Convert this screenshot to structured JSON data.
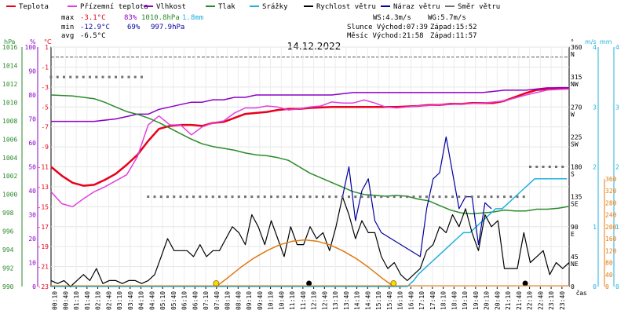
{
  "date_title": "14.12.2022",
  "legend": [
    {
      "label": "Teplota",
      "color": "#e8001c"
    },
    {
      "label": "Přízemní teplota",
      "color": "#e040e0"
    },
    {
      "label": "Vlhkost",
      "color": "#8a00c8"
    },
    {
      "label": "Tlak",
      "color": "#2a8a2a"
    },
    {
      "label": "Srážky",
      "color": "#20b0e0"
    },
    {
      "label": "Rychlost větru",
      "color": "#000000"
    },
    {
      "label": "Náraz větru",
      "color": "#0000a0"
    },
    {
      "label": "Směr větru",
      "color": "#707070"
    }
  ],
  "stats": {
    "max_label": "max",
    "max_temp": "-3.1°C",
    "max_hum": "83%",
    "max_press": "1010.8hPa",
    "max_rain": "1.8mm",
    "min_label": "min",
    "min_temp": "-12.9°C",
    "min_hum": "69%",
    "min_press": "997.9hPa",
    "avg_label": "avg",
    "avg_temp": "-6.5°C",
    "ws": "WS:4.3m/s",
    "wg": "WG:5.7m/s",
    "slunce": "Slunce Východ:07:39",
    "slunce_zapad": "Západ:15:52",
    "mesic": "Měsíc  Východ:21:58",
    "mesic_zapad": "Západ:11:57"
  },
  "axes": {
    "hpa_unit": "hPa",
    "pct_unit": "%",
    "c_unit": "°C",
    "deg_unit": "°",
    "ms_unit": "m/s",
    "mm_unit": "mm",
    "time_label": "čas",
    "hpa_ticks": [
      "1016",
      "1014",
      "1012",
      "1010",
      "1008",
      "1006",
      "1004",
      "1002",
      "1000",
      "998",
      "996",
      "994",
      "992",
      "990"
    ],
    "pct_ticks": [
      "100",
      "90",
      "80",
      "70",
      "60",
      "50",
      "40",
      "30",
      "20",
      "10",
      "0"
    ],
    "c_ticks": [
      "1",
      "-1",
      "-3",
      "-5",
      "-7",
      "-9",
      "-11",
      "-13",
      "-15",
      "-17",
      "-19",
      "-21",
      "-23"
    ],
    "dir_ticks": [
      {
        "v": "360",
        "l": "N"
      },
      {
        "v": "315",
        "l": "NW"
      },
      {
        "v": "270",
        "l": "W"
      },
      {
        "v": "225",
        "l": "SW"
      },
      {
        "v": "180",
        "l": "S"
      },
      {
        "v": "135",
        "l": "SE"
      },
      {
        "v": "90",
        "l": "E"
      },
      {
        "v": "45",
        "l": "NE"
      },
      {
        "v": "0",
        "l": ""
      }
    ],
    "ms_ticks": [
      "4",
      "3",
      "2",
      "1",
      "0"
    ],
    "mm_ticks": [
      "4",
      "3",
      "2",
      "1",
      "0"
    ],
    "sun_ticks": [
      "360",
      "320",
      "280",
      "240",
      "200",
      "160",
      "120",
      "80",
      "40",
      "0"
    ],
    "time_ticks": [
      "00:10",
      "00:40",
      "01:10",
      "01:40",
      "02:10",
      "02:40",
      "03:10",
      "03:40",
      "04:10",
      "04:40",
      "05:10",
      "05:40",
      "06:10",
      "06:40",
      "07:10",
      "07:40",
      "08:10",
      "08:40",
      "09:10",
      "09:40",
      "10:10",
      "10:40",
      "11:10",
      "11:40",
      "12:10",
      "12:40",
      "13:10",
      "13:40",
      "14:10",
      "14:40",
      "15:10",
      "15:40",
      "16:10",
      "16:40",
      "17:10",
      "17:40",
      "18:10",
      "18:40",
      "19:10",
      "19:40",
      "20:10",
      "20:40",
      "21:10",
      "21:40",
      "22:10",
      "22:40",
      "23:10",
      "23:40"
    ]
  },
  "chart_data": {
    "type": "line",
    "x_unit": "hours",
    "series": [
      {
        "name": "Teplota",
        "color": "#e8001c",
        "unit": "°C",
        "x": [
          0,
          0.5,
          1,
          1.5,
          2,
          2.5,
          3,
          3.5,
          4,
          4.5,
          5,
          5.5,
          6,
          6.5,
          7,
          7.5,
          8,
          8.5,
          9,
          9.5,
          10,
          10.5,
          11,
          11.5,
          12,
          13,
          14,
          15,
          16,
          17,
          17.5,
          18,
          18.5,
          19,
          19.5,
          20,
          20.5,
          21,
          21.5,
          22,
          22.5,
          23,
          23.5,
          24
        ],
        "y": [
          -11,
          -11.9,
          -12.6,
          -12.9,
          -12.8,
          -12.3,
          -11.7,
          -10.8,
          -9.8,
          -8.4,
          -7.2,
          -6.9,
          -6.8,
          -6.8,
          -6.9,
          -6.6,
          -6.5,
          -6.1,
          -5.7,
          -5.6,
          -5.5,
          -5.3,
          -5.2,
          -5.2,
          -5.1,
          -5.0,
          -5.0,
          -5.0,
          -5.0,
          -4.9,
          -4.8,
          -4.8,
          -4.7,
          -4.7,
          -4.6,
          -4.6,
          -4.6,
          -4.4,
          -4.0,
          -3.6,
          -3.3,
          -3.2,
          -3.1,
          -3.1
        ]
      },
      {
        "name": "Přízemní teplota",
        "color": "#e040e0",
        "unit": "°C",
        "x": [
          0,
          0.5,
          1,
          1.5,
          2,
          2.5,
          3,
          3.5,
          4,
          4.5,
          5,
          5.5,
          6,
          6.5,
          7,
          7.5,
          8,
          8.5,
          9,
          9.5,
          10,
          10.5,
          11,
          11.5,
          12,
          12.5,
          13,
          13.5,
          14,
          14.5,
          15,
          15.5,
          16,
          17,
          18,
          19,
          20,
          21,
          22,
          23,
          24
        ],
        "y": [
          -13.5,
          -14.7,
          -15,
          -14.2,
          -13.5,
          -13,
          -12.4,
          -11.8,
          -10,
          -6.8,
          -5.9,
          -6.8,
          -6.8,
          -7.8,
          -7.0,
          -6.6,
          -6.4,
          -5.6,
          -5.1,
          -5.1,
          -4.9,
          -5.0,
          -5.3,
          -5.2,
          -5.0,
          -4.9,
          -4.5,
          -4.6,
          -4.6,
          -4.3,
          -4.6,
          -5.0,
          -5.1,
          -4.9,
          -4.8,
          -4.7,
          -4.6,
          -4.4,
          -3.8,
          -3.3,
          -3.2
        ]
      },
      {
        "name": "Vlhkost",
        "color": "#8a00c8",
        "unit": "%",
        "x": [
          0,
          1,
          2,
          3,
          3.5,
          4,
          4.5,
          5,
          5.5,
          6,
          6.5,
          7,
          7.5,
          8,
          8.5,
          9,
          9.5,
          10,
          10.5,
          11,
          12,
          13,
          14,
          15,
          16,
          17,
          18,
          19,
          20,
          21,
          22,
          23,
          24
        ],
        "y": [
          69,
          69,
          69,
          70,
          71,
          72,
          72,
          74,
          75,
          76,
          77,
          77,
          78,
          78,
          79,
          79,
          80,
          80,
          80,
          80,
          80,
          80,
          81,
          81,
          81,
          81,
          81,
          81,
          81,
          82,
          82,
          83,
          83
        ]
      },
      {
        "name": "Tlak",
        "color": "#2a8a2a",
        "unit": "hPa",
        "x": [
          0,
          1,
          2,
          2.5,
          3,
          3.5,
          4,
          4.5,
          5,
          5.5,
          6,
          6.5,
          7,
          7.5,
          8,
          8.5,
          9,
          9.5,
          10,
          10.5,
          11,
          11.5,
          12,
          12.5,
          13,
          13.5,
          14,
          14.5,
          15,
          15.5,
          16,
          16.5,
          17,
          17.5,
          18,
          18.5,
          19,
          19.5,
          20,
          20.5,
          21,
          21.5,
          22,
          22.5,
          23,
          23.5,
          24
        ],
        "y": [
          1010.8,
          1010.7,
          1010.4,
          1010,
          1009.5,
          1009,
          1008.7,
          1008.3,
          1007.8,
          1007.2,
          1006.6,
          1006.0,
          1005.5,
          1005.2,
          1005.0,
          1004.8,
          1004.5,
          1004.3,
          1004.2,
          1004.0,
          1003.7,
          1003.0,
          1002.3,
          1001.8,
          1001.3,
          1000.8,
          1000.3,
          1000.0,
          999.9,
          999.8,
          999.9,
          999.8,
          999.5,
          999.3,
          998.8,
          998.3,
          998.0,
          997.9,
          998.0,
          998.1,
          998.3,
          998.2,
          998.2,
          998.4,
          998.4,
          998.5,
          998.7
        ]
      },
      {
        "name": "Srážky",
        "color": "#20b0e0",
        "unit": "mm",
        "x": [
          0,
          16.5,
          16.8,
          17.0,
          17.3,
          17.6,
          17.9,
          18.2,
          18.5,
          18.8,
          19.1,
          19.4,
          19.7,
          20.0,
          20.3,
          20.6,
          20.9,
          21.2,
          21.5,
          21.8,
          22.1,
          22.4,
          23.0,
          23.9
        ],
        "y": [
          0,
          0,
          0.1,
          0.2,
          0.3,
          0.4,
          0.5,
          0.6,
          0.7,
          0.8,
          0.9,
          0.9,
          1.0,
          1.1,
          1.2,
          1.3,
          1.3,
          1.4,
          1.5,
          1.6,
          1.7,
          1.8,
          1.8,
          1.8
        ]
      },
      {
        "name": "Rychlost větru",
        "color": "#000000",
        "unit": "m/s",
        "x": [
          0,
          0.3,
          0.6,
          0.9,
          1.2,
          1.5,
          1.8,
          2.1,
          2.4,
          2.7,
          3,
          3.3,
          3.6,
          3.9,
          4.2,
          4.5,
          4.8,
          5.1,
          5.4,
          5.7,
          6,
          6.3,
          6.6,
          6.9,
          7.2,
          7.5,
          7.8,
          8.1,
          8.4,
          8.7,
          9,
          9.3,
          9.6,
          9.9,
          10.2,
          10.5,
          10.8,
          11.1,
          11.4,
          11.7,
          12,
          12.3,
          12.6,
          12.9,
          13.2,
          13.5,
          13.8,
          14.1,
          14.4,
          14.7,
          15,
          15.3,
          15.6,
          15.9,
          16.2,
          16.5,
          16.8,
          17.1,
          17.4,
          17.7,
          18,
          18.3,
          18.6,
          18.9,
          19.2,
          19.5,
          19.8,
          20.1,
          20.4,
          20.7,
          21,
          21.3,
          21.6,
          21.9,
          22.2,
          22.5,
          22.8,
          23.1,
          23.4,
          23.7,
          24
        ],
        "y": [
          0.1,
          0.05,
          0.1,
          0,
          0.1,
          0.2,
          0.1,
          0.3,
          0.05,
          0.1,
          0.1,
          0.05,
          0.1,
          0.1,
          0.05,
          0.1,
          0.2,
          0.5,
          0.8,
          0.6,
          0.6,
          0.6,
          0.5,
          0.7,
          0.5,
          0.6,
          0.6,
          0.8,
          1.0,
          0.9,
          0.7,
          1.2,
          1.0,
          0.7,
          1.1,
          0.8,
          0.5,
          1.0,
          0.7,
          0.7,
          1.0,
          0.8,
          0.9,
          0.6,
          1.0,
          1.5,
          1.2,
          0.8,
          1.1,
          0.9,
          0.9,
          0.5,
          0.3,
          0.4,
          0.2,
          0.1,
          0.2,
          0.3,
          0.6,
          0.7,
          1.0,
          0.9,
          1.2,
          1.0,
          1.3,
          0.9,
          0.6,
          1.2,
          1.0,
          1.1,
          0.3,
          0.3,
          0.3,
          0.9,
          0.4,
          0.5,
          0.6,
          0.2,
          0.4,
          0.3,
          0.4
        ]
      },
      {
        "name": "Náraz větru",
        "color": "#0000a0",
        "unit": "m/s",
        "x": [
          13.5,
          13.8,
          14.1,
          14.4,
          14.7,
          15,
          15.3,
          17.1,
          17.4,
          17.7,
          18,
          18.3,
          18.6,
          18.9,
          19.2,
          19.5,
          19.8,
          20.1,
          20.4
        ],
        "y": [
          1.5,
          2.0,
          1.1,
          1.6,
          1.8,
          1.1,
          0.9,
          0.5,
          1.3,
          1.8,
          1.9,
          2.5,
          1.9,
          1.3,
          1.5,
          1.5,
          0.7,
          1.4,
          1.3
        ]
      },
      {
        "name": "Směr větru",
        "color": "#707070",
        "unit": "°",
        "x": [
          0,
          0.3,
          0.6,
          0.9,
          1.2,
          1.5,
          1.8,
          2.1,
          2.4,
          2.7,
          3,
          3.3,
          3.6,
          3.9,
          4.2,
          4.5,
          4.8,
          5.1,
          5.4,
          5.7,
          6,
          6.3,
          6.6,
          6.9,
          7.2,
          7.5,
          7.8,
          8.1,
          8.4,
          8.7,
          9,
          9.3,
          9.6,
          9.9,
          10.2,
          10.5,
          10.8,
          11.1,
          11.4,
          11.7,
          12,
          12.3,
          12.6,
          12.9,
          13.2,
          13.5,
          13.8,
          14.1,
          14.4,
          14.7,
          15,
          15.3,
          15.6,
          15.9,
          16.2,
          16.5,
          16.8,
          17.1,
          17.4,
          17.7,
          18,
          18.3,
          18.6,
          18.9,
          19.2,
          19.5,
          19.8,
          20.1,
          20.4,
          20.7,
          21,
          21.3,
          21.6,
          21.9,
          22.2,
          22.5,
          22.8,
          23.1,
          23.4,
          23.7
        ],
        "y": [
          315,
          315,
          315,
          315,
          315,
          315,
          315,
          315,
          315,
          315,
          315,
          315,
          315,
          315,
          315,
          135,
          135,
          135,
          135,
          135,
          135,
          135,
          135,
          135,
          135,
          135,
          135,
          135,
          135,
          135,
          135,
          135,
          135,
          135,
          135,
          135,
          135,
          135,
          135,
          135,
          135,
          135,
          135,
          135,
          135,
          135,
          135,
          135,
          135,
          135,
          135,
          135,
          135,
          135,
          135,
          135,
          135,
          135,
          135,
          135,
          135,
          135,
          135,
          135,
          135,
          135,
          135,
          135,
          135,
          135,
          135,
          135,
          135,
          135,
          180,
          180,
          180,
          180,
          180,
          180
        ]
      },
      {
        "name": "Výška slunce",
        "color": "#e07a10",
        "unit": "°",
        "x": [
          7.65,
          8.2,
          8.8,
          9.4,
          10,
          10.6,
          11.2,
          11.76,
          12.3,
          12.9,
          13.5,
          14.1,
          14.7,
          15.3,
          15.87
        ],
        "y": [
          0,
          30,
          65,
          95,
          120,
          140,
          152,
          156,
          152,
          140,
          120,
          95,
          65,
          30,
          0
        ]
      }
    ],
    "sunrise": "07:39",
    "sunset": "15:52",
    "moonrise": "21:58",
    "moonset": "11:57",
    "xlim": [
      0,
      24
    ],
    "ylim_temp": [
      -23,
      1
    ],
    "ylim_hum": [
      0,
      100
    ],
    "ylim_press": [
      990,
      1016
    ],
    "ylim_dir": [
      0,
      360
    ],
    "ylim_wind": [
      0,
      4
    ],
    "ylim_rain": [
      0,
      4
    ],
    "ylim_sun": [
      0,
      360
    ],
    "grid": true
  }
}
